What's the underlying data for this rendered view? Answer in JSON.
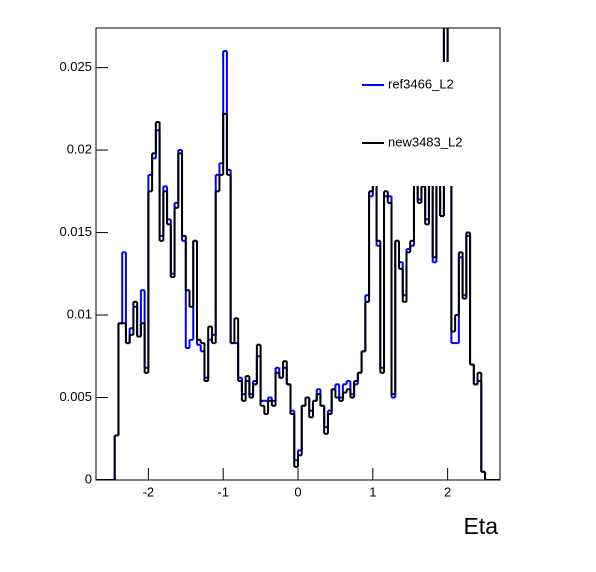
{
  "chart_data": {
    "type": "histogram",
    "xlabel": "Eta",
    "bins": [
      -2.7,
      -2.65,
      -2.6,
      -2.55,
      -2.5,
      -2.45,
      -2.4,
      -2.35,
      -2.3,
      -2.25,
      -2.2,
      -2.15,
      -2.1,
      -2.05,
      -2.0,
      -1.95,
      -1.9,
      -1.85,
      -1.8,
      -1.75,
      -1.7,
      -1.65,
      -1.6,
      -1.55,
      -1.5,
      -1.45,
      -1.4,
      -1.35,
      -1.3,
      -1.25,
      -1.2,
      -1.15,
      -1.1,
      -1.05,
      -1.0,
      -0.95,
      -0.9,
      -0.85,
      -0.8,
      -0.75,
      -0.7,
      -0.65,
      -0.6,
      -0.55,
      -0.5,
      -0.45,
      -0.4,
      -0.35,
      -0.3,
      -0.25,
      -0.2,
      -0.15,
      -0.1,
      -0.05,
      0.0,
      0.05,
      0.1,
      0.15,
      0.2,
      0.25,
      0.3,
      0.35,
      0.4,
      0.45,
      0.5,
      0.55,
      0.6,
      0.65,
      0.7,
      0.75,
      0.8,
      0.85,
      0.9,
      0.95,
      1.0,
      1.05,
      1.1,
      1.15,
      1.2,
      1.25,
      1.3,
      1.35,
      1.4,
      1.45,
      1.5,
      1.55,
      1.6,
      1.65,
      1.7,
      1.75,
      1.8,
      1.85,
      1.9,
      1.95,
      2.0,
      2.05,
      2.1,
      2.15,
      2.2,
      2.25,
      2.3,
      2.35,
      2.4,
      2.45,
      2.5,
      2.55,
      2.6,
      2.65,
      2.7
    ],
    "series": [
      {
        "name": "ref3466_L2",
        "color": "#0000ff",
        "values": [
          0,
          0,
          0,
          0,
          0,
          0.0027,
          0.0095,
          0.0138,
          0.0083,
          0.0092,
          0.0105,
          0.0087,
          0.0115,
          0.0068,
          0.0185,
          0.0195,
          0.0212,
          0.0148,
          0.0178,
          0.0158,
          0.0125,
          0.0168,
          0.02,
          0.0145,
          0.008,
          0.0085,
          0.0145,
          0.0082,
          0.0078,
          0.0062,
          0.0085,
          0.0088,
          0.0185,
          0.0192,
          0.026,
          0.0188,
          0.0083,
          0.0083,
          0.0062,
          0.0052,
          0.006,
          0.0052,
          0.006,
          0.0075,
          0.0048,
          0.0048,
          0.005,
          0.0048,
          0.0068,
          0.0062,
          0.0068,
          0.0058,
          0.0042,
          0.0012,
          0.0018,
          0.0045,
          0.005,
          0.0042,
          0.0048,
          0.0055,
          0.0045,
          0.0032,
          0.0042,
          0.0055,
          0.0058,
          0.005,
          0.0058,
          0.006,
          0.0052,
          0.0058,
          0.0065,
          0.0078,
          0.0112,
          0.0172,
          0.0188,
          0.0142,
          0.0068,
          0.0172,
          0.0172,
          0.005,
          0.0145,
          0.0132,
          0.0112,
          0.014,
          0.0142,
          0.0192,
          0.017,
          0.0178,
          0.0158,
          0.019,
          0.0132,
          0.018,
          0.016,
          0.0275,
          0.0185,
          0.0083,
          0.0083,
          0.0135,
          0.0112,
          0.0148,
          0.007,
          0.0058,
          0.006,
          0.0005,
          0,
          0,
          0,
          0
        ]
      },
      {
        "name": "new3483_L2",
        "color": "#000000",
        "values": [
          0,
          0,
          0,
          0,
          0,
          0.0027,
          0.0095,
          0.0095,
          0.0083,
          0.0088,
          0.0108,
          0.0087,
          0.0095,
          0.0065,
          0.0175,
          0.0198,
          0.0217,
          0.0145,
          0.0175,
          0.0155,
          0.0123,
          0.0165,
          0.0198,
          0.0148,
          0.0115,
          0.0105,
          0.0145,
          0.0085,
          0.0083,
          0.006,
          0.0093,
          0.0083,
          0.0175,
          0.0185,
          0.0222,
          0.0185,
          0.0083,
          0.0098,
          0.006,
          0.0048,
          0.0063,
          0.005,
          0.0058,
          0.0082,
          0.0045,
          0.004,
          0.0048,
          0.0045,
          0.0065,
          0.0062,
          0.0072,
          0.0058,
          0.004,
          0.0008,
          0.0015,
          0.0045,
          0.005,
          0.0038,
          0.0048,
          0.0052,
          0.0045,
          0.0028,
          0.004,
          0.0055,
          0.005,
          0.0048,
          0.0053,
          0.0055,
          0.005,
          0.006,
          0.0065,
          0.0078,
          0.0108,
          0.0175,
          0.018,
          0.0145,
          0.0065,
          0.0175,
          0.0168,
          0.0052,
          0.0145,
          0.0128,
          0.0108,
          0.0138,
          0.0145,
          0.019,
          0.0168,
          0.0178,
          0.0155,
          0.0188,
          0.0135,
          0.018,
          0.016,
          0.0275,
          0.0185,
          0.009,
          0.01,
          0.0138,
          0.011,
          0.015,
          0.007,
          0.0058,
          0.0065,
          0.0005,
          0,
          0,
          0,
          0
        ]
      }
    ],
    "xlim": [
      -2.7,
      2.7
    ],
    "ylim": [
      0,
      0.0274
    ],
    "xticks": [
      -2,
      -1,
      0,
      1,
      2
    ],
    "yticks": [
      0,
      0.005,
      0.01,
      0.015,
      0.02,
      0.025
    ]
  }
}
